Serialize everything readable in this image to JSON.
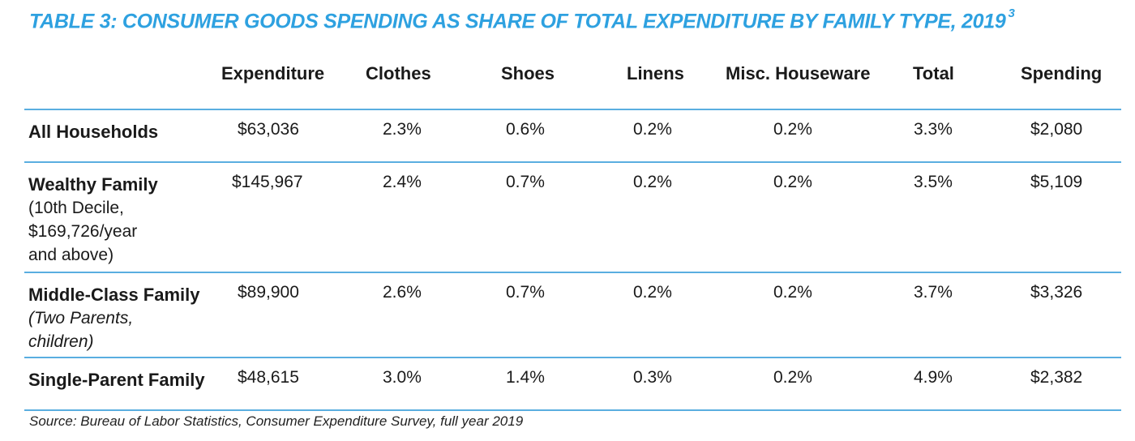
{
  "title": "TABLE 3:  CONSUMER GOODS SPENDING AS SHARE OF TOTAL EXPENDITURE BY FAMILY TYPE, 2019",
  "title_footnote": "3",
  "columns": [
    "Expenditure",
    "Clothes",
    "Shoes",
    "Linens",
    "Misc. Houseware",
    "Total",
    "Spending"
  ],
  "rows": [
    {
      "label": "All Households",
      "sublabel": "",
      "values": [
        "$63,036",
        "2.3%",
        "0.6%",
        "0.2%",
        "0.2%",
        "3.3%",
        "$2,080"
      ]
    },
    {
      "label": "Wealthy Family",
      "sublabel": "(10th Decile,\n$169,726/year\nand above)",
      "values": [
        "$145,967",
        "2.4%",
        "0.7%",
        "0.2%",
        "0.2%",
        "3.5%",
        "$5,109"
      ]
    },
    {
      "label": "Middle-Class Family",
      "sublabel": "(Two Parents,\nchildren)",
      "values": [
        "$89,900",
        "2.6%",
        "0.7%",
        "0.2%",
        "0.2%",
        "3.7%",
        "$3,326"
      ]
    },
    {
      "label": "Single-Parent Family",
      "sublabel": "",
      "values": [
        "$48,615",
        "3.0%",
        "1.4%",
        "0.3%",
        "0.2%",
        "4.9%",
        "$2,382"
      ]
    }
  ],
  "source": "Source: Bureau of Labor Statistics, Consumer Expenditure Survey, full year 2019",
  "colors": {
    "accent": "#2ea1e0",
    "rule": "#5aaee0",
    "text": "#1a1a1a"
  }
}
